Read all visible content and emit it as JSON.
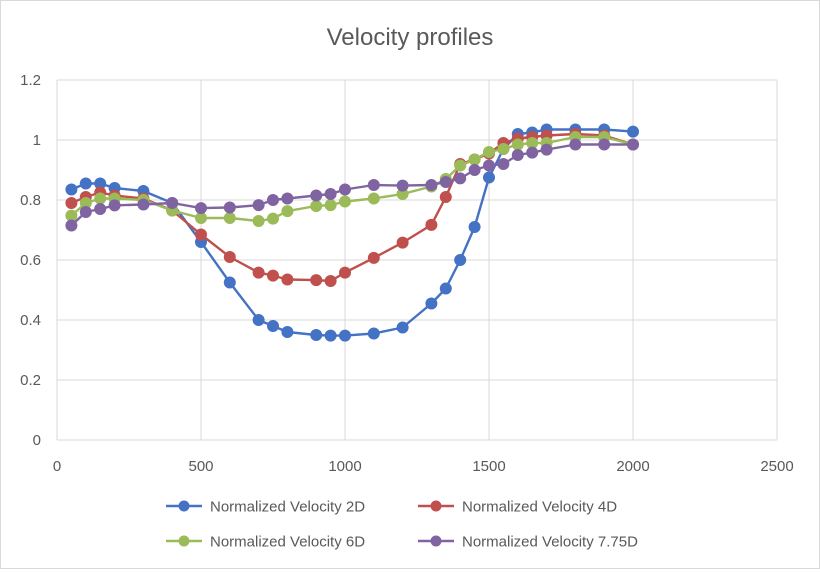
{
  "chart_data": {
    "type": "line",
    "title": "Velocity profiles",
    "xlabel": "",
    "ylabel": "",
    "xlim": [
      0,
      2500
    ],
    "ylim": [
      0,
      1.2
    ],
    "xticks": [
      0,
      500,
      1000,
      1500,
      2000,
      2500
    ],
    "yticks": [
      0,
      0.2,
      0.4,
      0.6,
      0.8,
      1,
      1.2
    ],
    "xtick_labels": [
      "0",
      "500",
      "1000",
      "1500",
      "2000",
      "2500"
    ],
    "ytick_labels": [
      "0",
      "0.2",
      "0.4",
      "0.6",
      "0.8",
      "1",
      "1.2"
    ],
    "grid": true,
    "legend_position": "bottom",
    "series": [
      {
        "name": "Normalized Velocity 2D",
        "color": "#4472C4",
        "x": [
          50,
          100,
          150,
          200,
          300,
          400,
          500,
          600,
          700,
          750,
          800,
          900,
          950,
          1000,
          1100,
          1200,
          1300,
          1350,
          1400,
          1450,
          1500,
          1550,
          1600,
          1650,
          1700,
          1800,
          1900,
          2000
        ],
        "y": [
          0.835,
          0.855,
          0.855,
          0.84,
          0.83,
          0.79,
          0.66,
          0.525,
          0.4,
          0.38,
          0.36,
          0.35,
          0.348,
          0.348,
          0.355,
          0.375,
          0.455,
          0.505,
          0.6,
          0.71,
          0.875,
          0.97,
          1.02,
          1.025,
          1.035,
          1.035,
          1.035,
          1.028
        ]
      },
      {
        "name": "Normalized Velocity 4D",
        "color": "#C0504D",
        "x": [
          50,
          100,
          150,
          200,
          300,
          400,
          500,
          600,
          700,
          750,
          800,
          900,
          950,
          1000,
          1100,
          1200,
          1300,
          1350,
          1400,
          1450,
          1500,
          1550,
          1600,
          1650,
          1700,
          1800,
          1900,
          2000
        ],
        "y": [
          0.79,
          0.81,
          0.825,
          0.815,
          0.805,
          0.765,
          0.685,
          0.61,
          0.558,
          0.548,
          0.535,
          0.533,
          0.53,
          0.558,
          0.607,
          0.658,
          0.717,
          0.81,
          0.92,
          0.935,
          0.955,
          0.99,
          1.005,
          1.01,
          1.015,
          1.02,
          1.015,
          0.985
        ]
      },
      {
        "name": "Normalized Velocity 6D",
        "color": "#9BBB59",
        "x": [
          50,
          100,
          150,
          200,
          300,
          400,
          500,
          600,
          700,
          750,
          800,
          900,
          950,
          1000,
          1100,
          1200,
          1300,
          1350,
          1400,
          1450,
          1500,
          1550,
          1600,
          1650,
          1700,
          1800,
          1900,
          2000
        ],
        "y": [
          0.748,
          0.79,
          0.805,
          0.805,
          0.8,
          0.765,
          0.74,
          0.74,
          0.73,
          0.738,
          0.763,
          0.78,
          0.783,
          0.795,
          0.805,
          0.82,
          0.845,
          0.87,
          0.915,
          0.935,
          0.96,
          0.97,
          0.985,
          0.99,
          0.99,
          1.01,
          1.01,
          0.985
        ]
      },
      {
        "name": "Normalized Velocity 7.75D",
        "color": "#8064A2",
        "x": [
          50,
          100,
          150,
          200,
          300,
          400,
          500,
          600,
          700,
          750,
          800,
          900,
          950,
          1000,
          1100,
          1200,
          1300,
          1350,
          1400,
          1450,
          1500,
          1550,
          1600,
          1650,
          1700,
          1800,
          1900,
          2000
        ],
        "y": [
          0.715,
          0.76,
          0.77,
          0.782,
          0.785,
          0.79,
          0.773,
          0.775,
          0.783,
          0.8,
          0.805,
          0.815,
          0.82,
          0.835,
          0.85,
          0.848,
          0.85,
          0.86,
          0.872,
          0.9,
          0.915,
          0.92,
          0.95,
          0.958,
          0.968,
          0.985,
          0.985,
          0.985
        ]
      }
    ]
  }
}
